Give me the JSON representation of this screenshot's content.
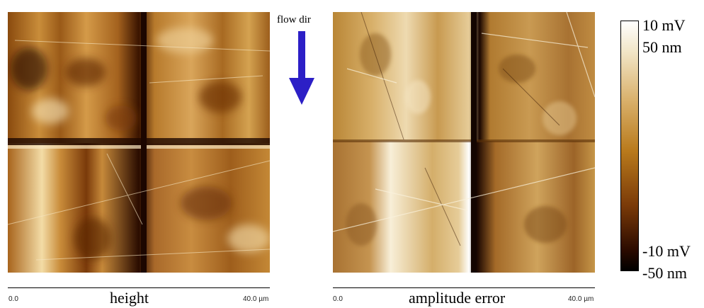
{
  "flow": {
    "label": "flow dir",
    "arrow_color": "#2c1fc6"
  },
  "panels": [
    {
      "title": "height",
      "axis_min": "0.0",
      "axis_max": "40.0 µm"
    },
    {
      "title": "amplitude error",
      "axis_min": "0.0",
      "axis_max": "40.0 µm"
    }
  ],
  "colorbar": {
    "top_labels": [
      "10 mV",
      "50 nm"
    ],
    "bottom_labels": [
      "-10 mV",
      "-50 nm"
    ],
    "colors": [
      "#ffffff",
      "#d9b06a",
      "#b97a1c",
      "#7a3a08",
      "#000000"
    ]
  }
}
